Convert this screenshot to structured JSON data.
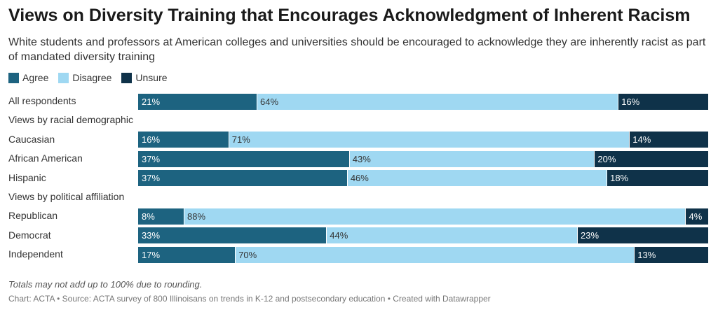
{
  "title": "Views on Diversity Training that Encourages Acknowledgment of Inherent Racism",
  "subtitle": "White students and professors at American colleges and universities should be encouraged to acknowledge they are inherently racist as part of mandated diversity training",
  "note": "Totals may not add up to 100% due to rounding.",
  "footer": "Chart: ACTA • Source: ACTA survey of 800 Illinoisans on trends in K-12 and postsecondary education • Created with Datawrapper",
  "colors": {
    "agree": "#1d6380",
    "disagree": "#9fd8f2",
    "unsure": "#0f3249"
  },
  "chart_data": {
    "type": "bar",
    "orientation": "horizontal",
    "stacked": true,
    "legend": [
      "Agree",
      "Disagree",
      "Unsure"
    ],
    "legend_position": "top-left",
    "xlim": [
      0,
      100
    ],
    "rows": [
      {
        "label": "All respondents",
        "values": [
          21,
          64,
          16
        ],
        "labels": [
          "21%",
          "64%",
          "16%"
        ]
      },
      {
        "label": "Views by racial demographic",
        "heading": true
      },
      {
        "label": "Caucasian",
        "values": [
          16,
          71,
          14
        ],
        "labels": [
          "16%",
          "71%",
          "14%"
        ]
      },
      {
        "label": "African American",
        "values": [
          37,
          43,
          20
        ],
        "labels": [
          "37%",
          "43%",
          "20%"
        ]
      },
      {
        "label": "Hispanic",
        "values": [
          37,
          46,
          18
        ],
        "labels": [
          "37%",
          "46%",
          "18%"
        ]
      },
      {
        "label": "Views by political affiliation",
        "heading": true
      },
      {
        "label": "Republican",
        "values": [
          8,
          88,
          4
        ],
        "labels": [
          "8%",
          "88%",
          "4%"
        ]
      },
      {
        "label": "Democrat",
        "values": [
          33,
          44,
          23
        ],
        "labels": [
          "33%",
          "44%",
          "23%"
        ]
      },
      {
        "label": "Independent",
        "values": [
          17,
          70,
          13
        ],
        "labels": [
          "17%",
          "70%",
          "13%"
        ]
      }
    ]
  }
}
